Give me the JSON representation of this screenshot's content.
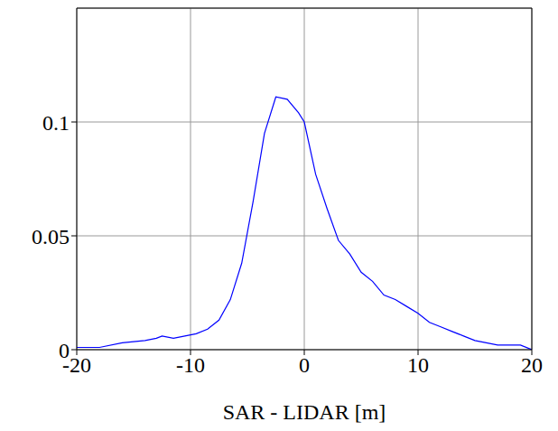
{
  "chart_data": {
    "type": "line",
    "xlabel": "SAR - LIDAR [m]",
    "x": [
      -20,
      -18,
      -16,
      -14,
      -13,
      -12.5,
      -11.5,
      -10.5,
      -9.5,
      -8.5,
      -7.5,
      -6.5,
      -5.5,
      -4.5,
      -3.5,
      -2.5,
      -1.5,
      -0.5,
      0,
      1,
      2,
      3,
      4,
      5,
      6,
      7,
      8,
      9,
      10,
      11,
      12,
      13,
      14,
      15,
      16,
      17,
      18,
      19,
      20
    ],
    "values": [
      0.001,
      0.001,
      0.003,
      0.004,
      0.005,
      0.006,
      0.005,
      0.006,
      0.007,
      0.009,
      0.013,
      0.022,
      0.038,
      0.065,
      0.095,
      0.111,
      0.11,
      0.104,
      0.1,
      0.077,
      0.062,
      0.048,
      0.042,
      0.034,
      0.03,
      0.024,
      0.022,
      0.019,
      0.016,
      0.012,
      0.01,
      0.008,
      0.006,
      0.004,
      0.003,
      0.002,
      0.002,
      0.002,
      0.0
    ],
    "color": "#0000ff",
    "xlim": [
      -20,
      20
    ],
    "ylim": [
      0,
      0.15
    ],
    "xticks": [
      -20,
      -10,
      0,
      10,
      20
    ],
    "yticks": [
      0,
      0.05,
      0.1
    ],
    "grid": true
  }
}
